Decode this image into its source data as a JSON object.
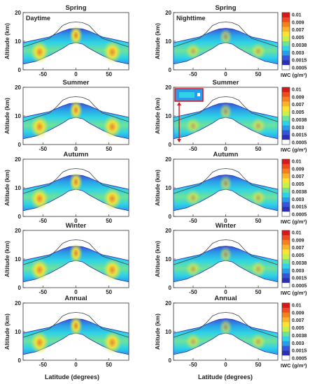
{
  "chart_data": {
    "type": "heatmap",
    "panel_annotations": {
      "left": "Daytime",
      "right": "Nighttime"
    },
    "row_titles": [
      "Spring",
      "Summer",
      "Autumn",
      "Winter",
      "Annual"
    ],
    "ylabel": "Altitude (km)",
    "xlabel": "Latitude (degrees)",
    "xlim": [
      -80,
      80
    ],
    "ylim": [
      0,
      20
    ],
    "xticks": [
      -50,
      0,
      50
    ],
    "yticks": [
      0,
      10,
      20
    ],
    "colorbar": {
      "label": "IWC (g/m³)",
      "ticks": [
        "0.01",
        "0.009",
        "0.007",
        "0.005",
        "0.0038",
        "0.003",
        "0.0015",
        "0.0005"
      ],
      "tick_values": [
        0.01,
        0.009,
        0.007,
        0.005,
        0.0038,
        0.003,
        0.0015,
        0.0005
      ],
      "colors": [
        "#d7191c",
        "#ee4b1e",
        "#f67f20",
        "#fbb42a",
        "#fde434",
        "#c8f04a",
        "#6fe29a",
        "#2fd3e6",
        "#2a9be8",
        "#3556d8",
        "#2b2fb0",
        "#ffffff"
      ]
    },
    "tropopause_line": {
      "x": [
        -80,
        -60,
        -40,
        -30,
        -20,
        -10,
        0,
        10,
        20,
        30,
        40,
        60,
        80
      ],
      "y": [
        8,
        9.5,
        11,
        13,
        15.5,
        16.5,
        16.7,
        16.5,
        15.5,
        13,
        11,
        9.5,
        8
      ]
    },
    "cloud_band": {
      "x": [
        -80,
        -60,
        -40,
        -20,
        -10,
        0,
        10,
        20,
        40,
        60,
        80
      ],
      "top": [
        9.5,
        10.5,
        11.5,
        13.5,
        14.3,
        14.5,
        14.3,
        13.5,
        11.5,
        10.5,
        9.5
      ],
      "bottom": [
        2,
        3,
        5,
        7.5,
        9,
        9.5,
        9,
        7.5,
        5,
        3,
        2
      ]
    }
  }
}
